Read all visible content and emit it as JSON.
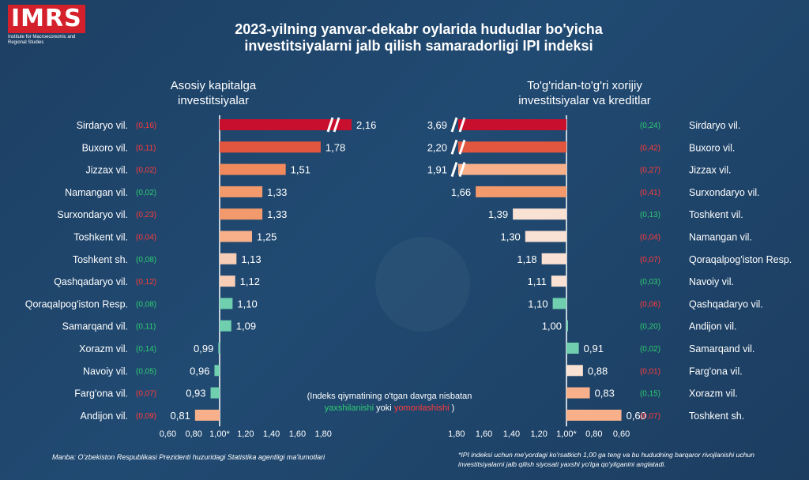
{
  "logo": {
    "text": "IMRS",
    "subtitle": "Institute for Macroeconomic and Regional Studies"
  },
  "title": {
    "line1": "2023-yilning yanvar-dekabr oylarida hududlar bo'yicha",
    "line2": "investitsiyalarni jalb qilish samaradorligi IPI indeksi"
  },
  "colors": {
    "dark_red": "#c8102e",
    "red": "#e2553e",
    "orange": "#f08a5d",
    "light_orange": "#f7b08a",
    "pale": "#f8d3bf",
    "paler": "#f9e1d3",
    "teal": "#6fcfae",
    "green_text": "#2ecc71",
    "red_text": "#ff3b3b"
  },
  "chart_data": [
    {
      "type": "bar",
      "orientation": "horizontal",
      "title_line1": "Asosiy kapitalga",
      "title_line2": "investitsiyalar",
      "baseline": 1.0,
      "xlim": [
        0.6,
        1.8
      ],
      "axis_break_over": 2.16,
      "ticks": [
        "0,60",
        "0,80",
        "1,00*",
        "1,20",
        "1,40",
        "1,60",
        "1,80"
      ],
      "tick_values": [
        0.6,
        0.8,
        1.0,
        1.2,
        1.4,
        1.6,
        1.8
      ],
      "categories": [
        "Sirdaryo vil.",
        "Buxoro vil.",
        "Jizzax vil.",
        "Namangan vil.",
        "Surxondaryo vil.",
        "Toshkent vil.",
        "Toshkent sh.",
        "Qashqadaryo vil.",
        "Qoraqalpog'iston Resp.",
        "Samarqand vil.",
        "Xorazm vil.",
        "Navoiy vil.",
        "Farg'ona vil.",
        "Andijon vil."
      ],
      "values": [
        2.16,
        1.78,
        1.51,
        1.33,
        1.33,
        1.25,
        1.13,
        1.12,
        1.1,
        1.09,
        0.99,
        0.96,
        0.93,
        0.81
      ],
      "value_labels": [
        "2,16",
        "1,78",
        "1,51",
        "1,33",
        "1,33",
        "1,25",
        "1,13",
        "1,12",
        "1,10",
        "1,09",
        "0,99",
        "0,96",
        "0,93",
        "0,81"
      ],
      "changes": [
        "(0,16)",
        "(0,11)",
        "(0,02)",
        "(0,02)",
        "(0,23)",
        "(0,04)",
        "(0,08)",
        "(0,12)",
        "(0,08)",
        "(0,11)",
        "(0,14)",
        "(0,05)",
        "(0,07)",
        "(0,09)"
      ],
      "change_direction": [
        "down",
        "down",
        "down",
        "up",
        "down",
        "down",
        "up",
        "down",
        "up",
        "up",
        "up",
        "up",
        "down",
        "down"
      ],
      "bar_colors": [
        "#c8102e",
        "#e2553e",
        "#f08a5d",
        "#f39a6c",
        "#f39a6c",
        "#f7b08a",
        "#f8cdb6",
        "#f8cdb6",
        "#6fcfae",
        "#6fcfae",
        "#6fcfae",
        "#6fcfae",
        "#6fcfae",
        "#f7b08a"
      ]
    },
    {
      "type": "bar",
      "orientation": "horizontal",
      "title_line1": "To'g'ridan-to'g'ri xorijiy",
      "title_line2": "investitsiyalar va kreditlar",
      "baseline": 1.0,
      "xlim": [
        0.6,
        1.8
      ],
      "axis_break_over": 3.69,
      "reversed": true,
      "ticks": [
        "1,80",
        "1,60",
        "1,40",
        "1,20",
        "1,00*",
        "0,80",
        "0,60"
      ],
      "tick_values": [
        1.8,
        1.6,
        1.4,
        1.2,
        1.0,
        0.8,
        0.6
      ],
      "categories": [
        "Sirdaryo vil.",
        "Buxoro vil.",
        "Jizzax vil.",
        "Surxondaryo vil.",
        "Toshkent vil.",
        "Namangan vil.",
        "Qoraqalpog'iston Resp.",
        "Navoiy vil.",
        "Qashqadaryo vil.",
        "Andijon vil.",
        "Samarqand vil.",
        "Farg'ona vil.",
        "Xorazm vil.",
        "Toshkent sh."
      ],
      "values": [
        3.69,
        2.2,
        1.91,
        1.66,
        1.39,
        1.3,
        1.18,
        1.11,
        1.1,
        1.0,
        0.91,
        0.88,
        0.83,
        0.6
      ],
      "value_labels": [
        "3,69",
        "2,20",
        "1,91",
        "1,66",
        "1,39",
        "1,30",
        "1,18",
        "1,11",
        "1,10",
        "1,00",
        "0,91",
        "0,88",
        "0,83",
        "0,60"
      ],
      "changes": [
        "(0,24)",
        "(0,42)",
        "(0,27)",
        "(0,41)",
        "(0,13)",
        "(0,04)",
        "(0,07)",
        "(0,03)",
        "(0,06)",
        "(0,20)",
        "(0,02)",
        "(0,01)",
        "(0,15)",
        "(0,07)"
      ],
      "change_direction": [
        "up",
        "down",
        "down",
        "down",
        "up",
        "down",
        "down",
        "up",
        "down",
        "up",
        "up",
        "down",
        "up",
        "down"
      ],
      "bar_colors": [
        "#c8102e",
        "#e2553e",
        "#f7b08a",
        "#f39a6c",
        "#f9e1d3",
        "#f9e1d3",
        "#f9e1d3",
        "#f9e1d3",
        "#6fcfae",
        "#6fcfae",
        "#6fcfae",
        "#f9e1d3",
        "#f7b08a",
        "#f7b08a"
      ]
    }
  ],
  "note": {
    "line1": "(Indeks qiymatining o'tgan davrga nisbatan",
    "improve": "yaxshilanishi",
    "or": " yoki ",
    "worsen": "yomonlashishi",
    "close": " )"
  },
  "source": "Manba: O'zbekiston Respublikasi Prezidenti huzuridagi Statistika agentligi ma'lumotlari",
  "footnote": "*IPI indeksi uchun me'yordagi ko'rsatkich 1,00 ga teng va bu hududning barqaror rivojlanishi uchun investitsiyalarni jalb qilish siyosati yaxshi yo'lga qo'yilganini anglatadi."
}
